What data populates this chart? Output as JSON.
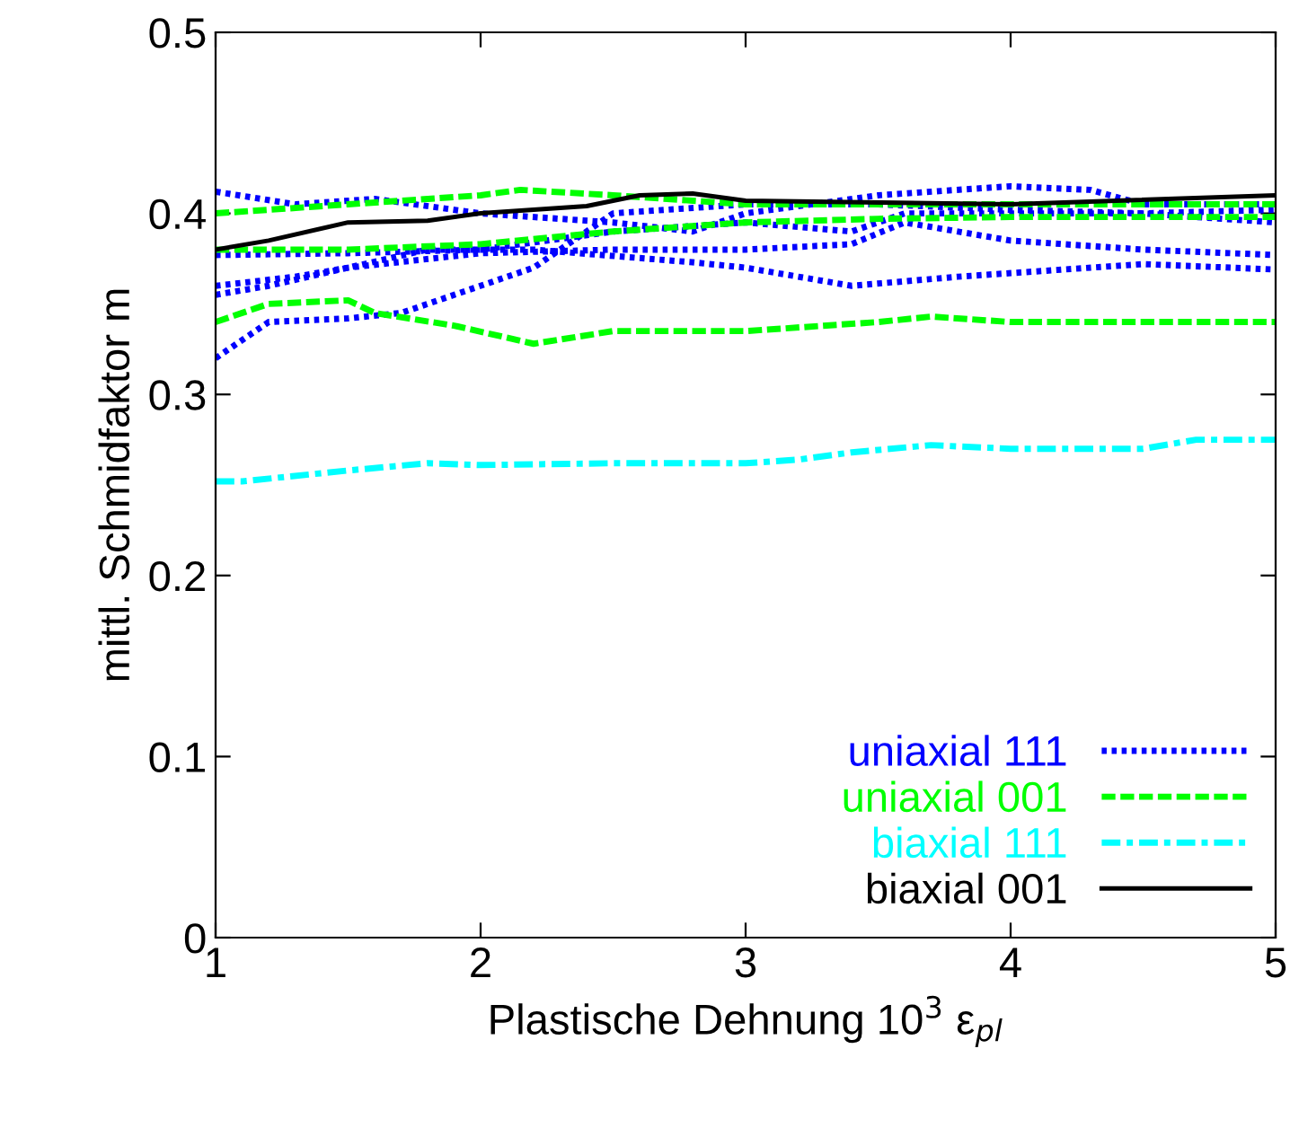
{
  "chart_data": {
    "type": "line",
    "xlabel": "Plastische Dehnung 10$^{3}$ ε$_{pl}$",
    "ylabel": "mittl. Schmidfaktor m",
    "xlim": [
      1,
      5
    ],
    "ylim": [
      0,
      0.5
    ],
    "xticks": [
      1,
      2,
      3,
      4,
      5
    ],
    "yticks": [
      0,
      0.1,
      0.2,
      0.3,
      0.4,
      0.5
    ],
    "grid": false,
    "legend": "bottom right",
    "series": [
      {
        "name": "uniaxial 111",
        "color": "#0000ff",
        "line_style": "dotted",
        "x": [
          1,
          1.3,
          1.6,
          2,
          2.5,
          2.8,
          3,
          3.5,
          4,
          4.3,
          4.5,
          5
        ],
        "values": [
          0.412,
          0.405,
          0.408,
          0.4,
          0.395,
          0.39,
          0.4,
          0.41,
          0.415,
          0.413,
          0.405,
          0.405
        ]
      },
      {
        "color": "#0000ff",
        "line_style": "dotted",
        "x": [
          1,
          1.5,
          2,
          2.5,
          3,
          3.4,
          3.6,
          4,
          4.5,
          5
        ],
        "values": [
          0.377,
          0.378,
          0.38,
          0.39,
          0.395,
          0.39,
          0.4,
          0.4,
          0.4,
          0.402
        ]
      },
      {
        "color": "#0000ff",
        "line_style": "dotted",
        "x": [
          1,
          1.3,
          1.5,
          2,
          2.5,
          3,
          3.4,
          3.6,
          4,
          4.5,
          5
        ],
        "values": [
          0.36,
          0.365,
          0.37,
          0.378,
          0.38,
          0.38,
          0.383,
          0.395,
          0.385,
          0.38,
          0.377
        ]
      },
      {
        "color": "#0000ff",
        "line_style": "dotted",
        "x": [
          1,
          1.2,
          1.5,
          1.7,
          2.2,
          2.5,
          3,
          3.5,
          4,
          4.5,
          5
        ],
        "values": [
          0.32,
          0.34,
          0.342,
          0.345,
          0.37,
          0.4,
          0.405,
          0.405,
          0.402,
          0.4,
          0.395
        ]
      },
      {
        "color": "#0000ff",
        "line_style": "dotted",
        "x": [
          1,
          1.2,
          1.5,
          1.8,
          2.2,
          2.8,
          3,
          3.4,
          3.8,
          4.5,
          5
        ],
        "values": [
          0.355,
          0.36,
          0.37,
          0.38,
          0.38,
          0.373,
          0.37,
          0.36,
          0.365,
          0.372,
          0.369
        ]
      },
      {
        "name": "uniaxial 001",
        "color": "#00ff00",
        "line_style": "dashed",
        "x": [
          1,
          1.5,
          2,
          2.15,
          2.5,
          3,
          3.5,
          4,
          5
        ],
        "values": [
          0.4,
          0.405,
          0.41,
          0.413,
          0.41,
          0.405,
          0.405,
          0.405,
          0.405
        ]
      },
      {
        "color": "#00ff00",
        "line_style": "dashed",
        "x": [
          1,
          1.5,
          2,
          2.5,
          3,
          3.5,
          4,
          5
        ],
        "values": [
          0.38,
          0.38,
          0.383,
          0.39,
          0.395,
          0.397,
          0.398,
          0.398
        ]
      },
      {
        "color": "#00ff00",
        "line_style": "dashed",
        "x": [
          1,
          1.2,
          1.5,
          1.6,
          1.9,
          2.2,
          2.5,
          3,
          3.5,
          3.7,
          4,
          4.5,
          5
        ],
        "values": [
          0.34,
          0.35,
          0.352,
          0.345,
          0.338,
          0.328,
          0.335,
          0.335,
          0.34,
          0.343,
          0.34,
          0.34,
          0.34
        ]
      },
      {
        "name": "biaxial 111",
        "color": "#00ffff",
        "line_style": "dashdot",
        "x": [
          1,
          1.1,
          1.5,
          1.8,
          2,
          2.5,
          3,
          3.2,
          3.4,
          3.7,
          4,
          4.5,
          4.7,
          5
        ],
        "values": [
          0.252,
          0.252,
          0.258,
          0.262,
          0.261,
          0.262,
          0.262,
          0.264,
          0.268,
          0.272,
          0.27,
          0.27,
          0.275,
          0.275
        ]
      },
      {
        "name": "biaxial 001",
        "color": "#000000",
        "line_style": "solid",
        "x": [
          1,
          1.2,
          1.5,
          1.8,
          2,
          2.3,
          2.4,
          2.6,
          2.8,
          3,
          4,
          5
        ],
        "values": [
          0.38,
          0.385,
          0.395,
          0.396,
          0.4,
          0.403,
          0.404,
          0.41,
          0.411,
          0.407,
          0.405,
          0.41
        ]
      }
    ]
  }
}
